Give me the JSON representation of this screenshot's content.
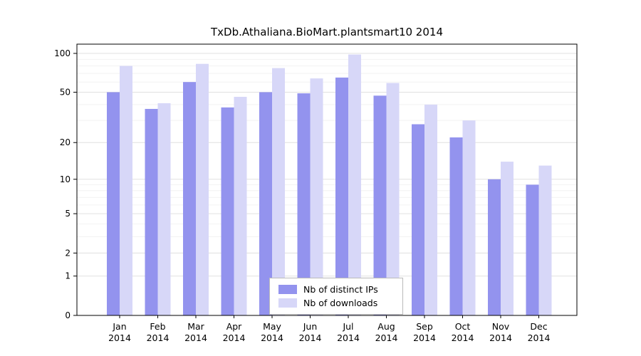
{
  "title": "TxDb.Athaliana.BioMart.plantsmart10 2014",
  "chart_data": {
    "type": "bar",
    "title": "TxDb.Athaliana.BioMart.plantsmart10 2014",
    "scale": "log1p",
    "grid": true,
    "legend_position": "bottom-center",
    "categories": [
      "Jan",
      "Feb",
      "Mar",
      "Apr",
      "May",
      "Jun",
      "Jul",
      "Aug",
      "Sep",
      "Oct",
      "Nov",
      "Dec"
    ],
    "year": "2014",
    "xlabel": "",
    "ylabel": "",
    "yticks": [
      0,
      1,
      2,
      5,
      10,
      20,
      50,
      100
    ],
    "minor_gridlines": [
      3,
      4,
      6,
      7,
      8,
      9,
      30,
      40,
      60,
      70,
      80,
      90
    ],
    "ylim": [
      0,
      105
    ],
    "series": [
      {
        "name": "Nb of distinct IPs",
        "color": "#9393ee",
        "values": [
          50,
          37,
          60,
          38,
          50,
          49,
          65,
          47,
          28,
          22,
          10,
          9
        ]
      },
      {
        "name": "Nb of downloads",
        "color": "#d7d7f8",
        "values": [
          80,
          41,
          83,
          46,
          77,
          64,
          98,
          59,
          40,
          30,
          14,
          13
        ]
      }
    ]
  },
  "colors": {
    "grid_major": "#e0e0e0",
    "grid_minor": "#f2f2f2",
    "axis": "#000000",
    "background": "#ffffff",
    "legend_border": "#bbbbbb"
  }
}
